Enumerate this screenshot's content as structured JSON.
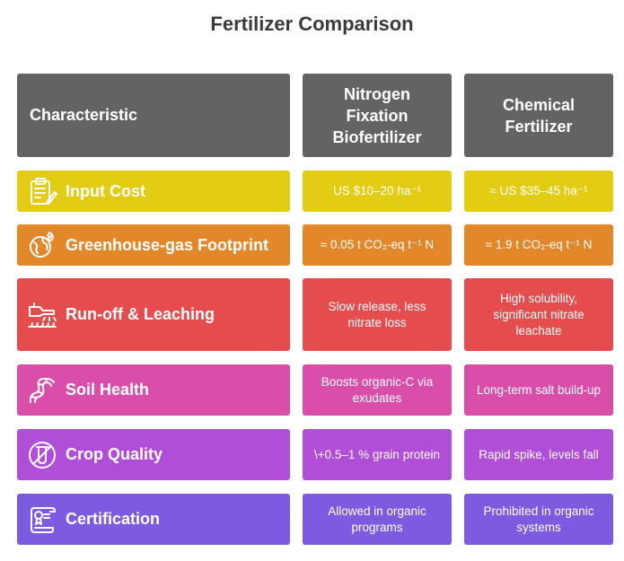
{
  "title": "Fertilizer Comparison",
  "header": {
    "characteristic": "Characteristic",
    "col1": "Nitrogen\nFixation\nBiofertilizer",
    "col2": "Chemical\nFertilizer"
  },
  "rows": [
    {
      "label": "Input Cost",
      "icon": "clipboard-icon",
      "color": "#e2cd14",
      "bio": "US $10–20 ha⁻¹",
      "chem": "≈ US $35–45 ha⁻¹"
    },
    {
      "label": "Greenhouse-gas Footprint",
      "icon": "globe-fire-icon",
      "color": "#e2872a",
      "bio": "≈ 0.05 t CO₂-eq t⁻¹ N",
      "chem": "≈ 1.9 t CO₂-eq t⁻¹ N"
    },
    {
      "label": "Run-off & Leaching",
      "icon": "sprayer-icon",
      "color": "#e54c4e",
      "bio": "Slow release, less nitrate loss",
      "chem": "High solubility, significant nitrate leachate"
    },
    {
      "label": "Soil Health",
      "icon": "worm-icon",
      "color": "#d84ea9",
      "bio": "Boosts organic-C via exudates",
      "chem": "Long-term salt build-up"
    },
    {
      "label": "Crop Quality",
      "icon": "no-test-tube-icon",
      "color": "#b04ed8",
      "bio": "\\+0.5–1 % grain protein",
      "chem": "Rapid spike, levels fall"
    },
    {
      "label": "Certification",
      "icon": "certificate-scroll-icon",
      "color": "#7d5be0",
      "bio": "Allowed in organic programs",
      "chem": "Prohibited in organic systems"
    }
  ]
}
